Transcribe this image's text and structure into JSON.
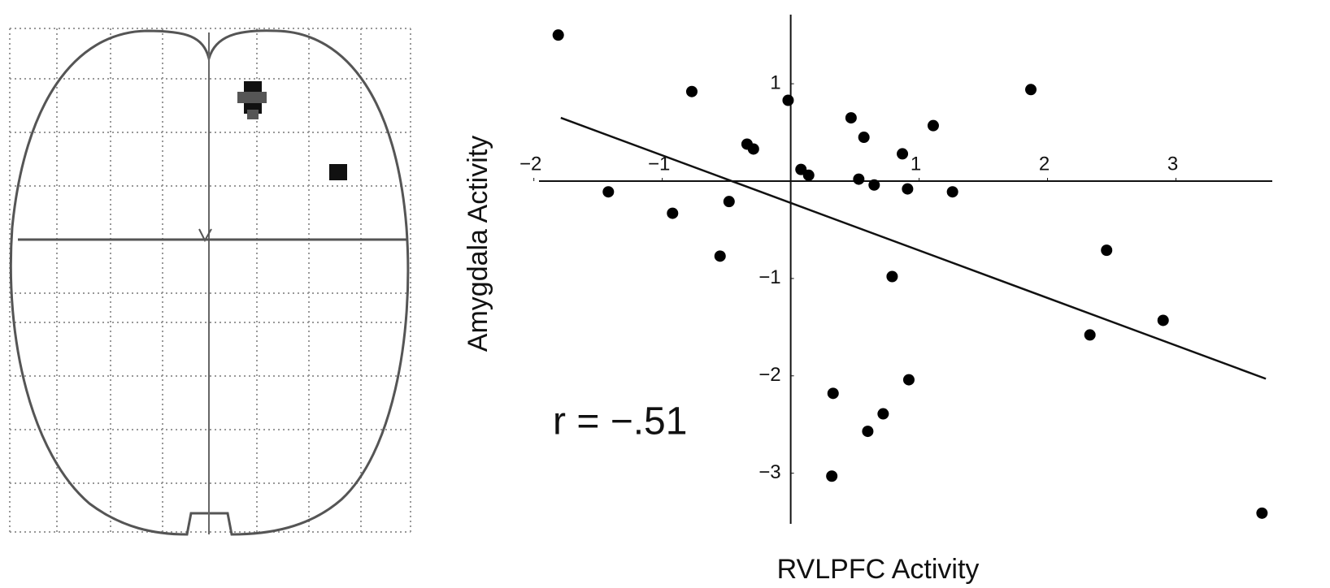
{
  "chart_data": {
    "type": "scatter",
    "x_label": "RVLPFC Activity",
    "y_label": "Amygdala Activity",
    "annotation": "r = −.51",
    "xlim": [
      -1.96,
      3.75
    ],
    "ylim": [
      -3.52,
      1.71
    ],
    "xticks": [
      {
        "value": -2,
        "label": "−2"
      },
      {
        "value": -1,
        "label": "−1"
      },
      1,
      2,
      3
    ],
    "yticks": [
      1,
      {
        "value": -1,
        "label": "−1"
      },
      {
        "value": -2,
        "label": "−2"
      },
      {
        "value": -3,
        "label": "−3"
      }
    ],
    "color": "#000000",
    "x": [
      -1.81,
      -0.77,
      -0.02,
      0.47,
      1.11,
      1.87,
      0.57,
      -0.34,
      -0.29,
      0.87,
      0.08,
      0.14,
      0.53,
      0.65,
      0.91,
      1.26,
      -1.42,
      -0.48,
      -0.92,
      -0.55,
      2.46,
      0.79,
      2.9,
      2.33,
      0.92,
      0.33,
      0.72,
      0.6,
      0.32,
      3.67
    ],
    "values": [
      1.5,
      0.92,
      0.83,
      0.65,
      0.57,
      0.94,
      0.45,
      0.38,
      0.33,
      0.28,
      0.12,
      0.06,
      0.02,
      -0.04,
      -0.08,
      -0.11,
      -0.11,
      -0.21,
      -0.33,
      -0.77,
      -0.71,
      -0.98,
      -1.43,
      -1.58,
      -2.04,
      -2.18,
      -2.39,
      -2.57,
      -3.03,
      -3.41
    ],
    "trend_line": {
      "x": [
        -1.79,
        3.7
      ],
      "y": [
        0.65,
        -2.03
      ]
    }
  }
}
